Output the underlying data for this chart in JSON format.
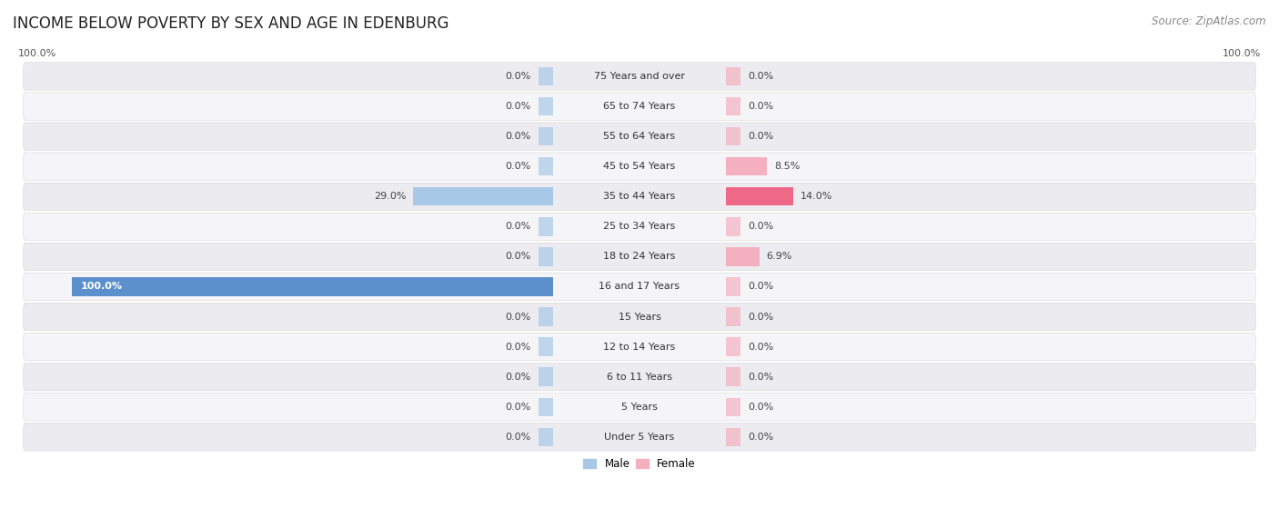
{
  "title": "INCOME BELOW POVERTY BY SEX AND AGE IN EDENBURG",
  "source": "Source: ZipAtlas.com",
  "categories": [
    "Under 5 Years",
    "5 Years",
    "6 to 11 Years",
    "12 to 14 Years",
    "15 Years",
    "16 and 17 Years",
    "18 to 24 Years",
    "25 to 34 Years",
    "35 to 44 Years",
    "45 to 54 Years",
    "55 to 64 Years",
    "65 to 74 Years",
    "75 Years and over"
  ],
  "male": [
    0.0,
    0.0,
    0.0,
    0.0,
    0.0,
    100.0,
    0.0,
    0.0,
    29.0,
    0.0,
    0.0,
    0.0,
    0.0
  ],
  "female": [
    0.0,
    0.0,
    0.0,
    0.0,
    0.0,
    0.0,
    6.9,
    0.0,
    14.0,
    8.5,
    0.0,
    0.0,
    0.0
  ],
  "male_color": "#a8c8e8",
  "female_color": "#f4b0c0",
  "male_color_highlight": "#5b90cc",
  "female_color_highlight": "#f06888",
  "max_val": 100.0,
  "legend_male": "Male",
  "legend_female": "Female",
  "title_fontsize": 12,
  "source_fontsize": 8.5,
  "label_fontsize": 8,
  "cat_fontsize": 8,
  "tick_fontsize": 8
}
